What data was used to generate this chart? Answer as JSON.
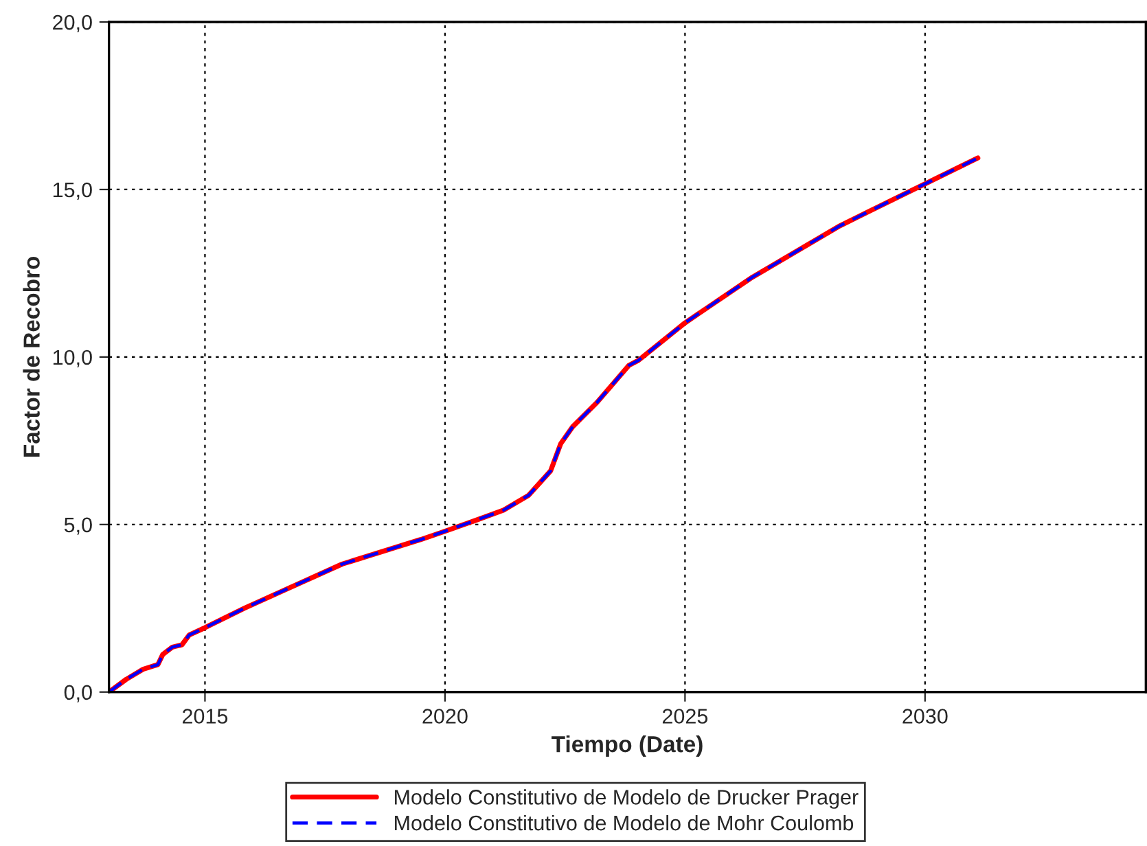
{
  "chart_data": {
    "type": "line",
    "xlabel": "Tiempo (Date)",
    "ylabel": "Factor de Recobro",
    "x": [
      2013.0,
      2013.36,
      2013.71,
      2014.02,
      2014.12,
      2014.32,
      2014.52,
      2014.67,
      2015.0,
      2015.82,
      2016.73,
      2017.86,
      2019.49,
      2020.0,
      2020.61,
      2021.22,
      2021.74,
      2022.2,
      2022.41,
      2022.66,
      2023.17,
      2023.83,
      2024.03,
      2025.0,
      2026.4,
      2028.23,
      2030.0,
      2031.1
    ],
    "series": [
      {
        "name": "Modelo Constitutivo de Modelo de Drucker Prager",
        "color": "#ff0000",
        "line_style": "solid",
        "values": [
          0.0,
          0.38,
          0.68,
          0.82,
          1.12,
          1.34,
          1.41,
          1.7,
          1.92,
          2.5,
          3.09,
          3.82,
          4.55,
          4.8,
          5.11,
          5.43,
          5.87,
          6.6,
          7.41,
          7.92,
          8.65,
          9.75,
          9.9,
          11.02,
          12.38,
          13.92,
          15.17,
          15.94
        ]
      },
      {
        "name": "Modelo Constitutivo de Modelo de Mohr Coulomb",
        "color": "#0000ff",
        "line_style": "dashed",
        "values": [
          0.0,
          0.38,
          0.68,
          0.82,
          1.12,
          1.34,
          1.41,
          1.7,
          1.92,
          2.5,
          3.09,
          3.82,
          4.55,
          4.8,
          5.11,
          5.43,
          5.87,
          6.6,
          7.41,
          7.92,
          8.65,
          9.75,
          9.9,
          11.02,
          12.38,
          13.92,
          15.17,
          15.94
        ]
      }
    ],
    "xlim": [
      2013.0,
      2034.6
    ],
    "xticks": [
      2015,
      2020,
      2025,
      2030
    ],
    "ylim": [
      0,
      20
    ],
    "yticks": [
      {
        "value": 0,
        "label": "0,0"
      },
      {
        "value": 5,
        "label": "5,0"
      },
      {
        "value": 10,
        "label": "10,0"
      },
      {
        "value": 15,
        "label": "15,0"
      },
      {
        "value": 20,
        "label": "20,0"
      }
    ],
    "grid": true,
    "legend": "bottom"
  }
}
